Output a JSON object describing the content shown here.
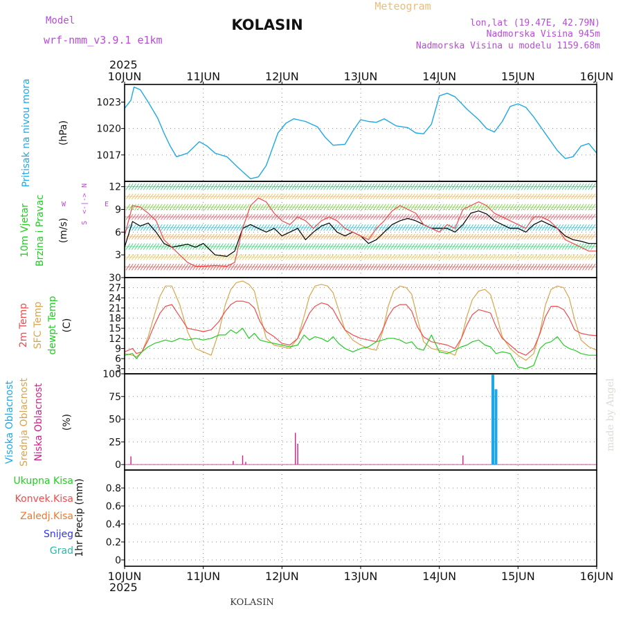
{
  "header": {
    "model_label": "Model",
    "model_name": "wrf-nmm_v3.9.1 e1km",
    "station": "KOLASIN",
    "meteogram_label": "Meteogram",
    "coords": "lon,lat (19.47E, 42.79N)",
    "elevation": "Nadmorska Visina 945m",
    "model_elevation": "Nadmorska Visina u modelu 1159.68m",
    "year_top": "2025",
    "year_bottom": "2025",
    "footer_station": "KOLASIN",
    "watermark": "made by Angel"
  },
  "colors": {
    "pressure": "#1ea7e8",
    "t2m": "#ef4b4b",
    "tsfc": "#d9a54a",
    "dewpt": "#22cc22",
    "cloud_high": "#1ea7e8",
    "cloud_mid": "#d9a54a",
    "cloud_low": "#cc2288",
    "grid": "#999999"
  },
  "chart_data": [
    {
      "type": "line",
      "panel": "pressure",
      "ylabel_left": "Pritisak na nivou mora",
      "ylabel_unit": "(hPa)",
      "x_ticks": [
        "10JUN",
        "11JUN",
        "12JUN",
        "13JUN",
        "14JUN",
        "15JUN",
        "16JUN"
      ],
      "y_ticks": [
        "1017",
        "1020",
        "1023"
      ],
      "ylim": [
        1014,
        1025
      ],
      "series": [
        {
          "color": "#1ea7e8",
          "x": [
            0,
            0.08,
            0.12,
            0.2,
            0.3,
            0.42,
            0.5,
            0.58,
            0.66,
            0.8,
            0.95,
            1.05,
            1.15,
            1.3,
            1.45,
            1.55,
            1.6,
            1.7,
            1.8,
            1.95,
            2.05,
            2.15,
            2.3,
            2.45,
            2.55,
            2.65,
            2.8,
            2.9,
            3.0,
            3.1,
            3.2,
            3.3,
            3.45,
            3.6,
            3.7,
            3.8,
            3.9,
            4.0,
            4.1,
            4.2,
            4.35,
            4.5,
            4.6,
            4.7,
            4.8,
            4.9,
            5.0,
            5.1,
            5.2,
            5.35,
            5.5,
            5.6,
            5.7,
            5.8,
            5.9,
            6.0
          ],
          "values": [
            1022.3,
            1023.2,
            1024.7,
            1024.4,
            1023.0,
            1021.2,
            1019.5,
            1018.0,
            1016.8,
            1017.2,
            1018.5,
            1018.0,
            1017.2,
            1016.8,
            1015.5,
            1014.7,
            1014.3,
            1014.5,
            1015.8,
            1019.5,
            1020.6,
            1021.1,
            1020.8,
            1020.2,
            1019.0,
            1018.1,
            1018.2,
            1019.7,
            1021.0,
            1020.8,
            1020.7,
            1021.1,
            1020.3,
            1020.1,
            1019.5,
            1019.4,
            1020.5,
            1023.7,
            1024.0,
            1023.6,
            1022.2,
            1021.0,
            1020.0,
            1019.6,
            1020.8,
            1022.5,
            1022.8,
            1022.4,
            1021.3,
            1019.4,
            1017.5,
            1016.6,
            1016.8,
            1018.0,
            1018.3,
            1017.2
          ]
        }
      ]
    },
    {
      "type": "line",
      "panel": "wind",
      "ylabel_left_1": "10m Vjetar",
      "ylabel_left_2": "Brzina i Pravac",
      "ylabel_unit": "(m/s)",
      "compass": {
        "n": "N",
        "s": "S",
        "e": "E",
        "w": "W",
        "arrow": "<-|->"
      },
      "y_ticks": [
        "3",
        "6",
        "9",
        "12"
      ],
      "ylim": [
        0,
        12.7
      ],
      "series": [
        {
          "color": "#000000",
          "x": [
            0,
            0.1,
            0.2,
            0.3,
            0.4,
            0.5,
            0.6,
            0.7,
            0.8,
            0.9,
            1.0,
            1.15,
            1.3,
            1.4,
            1.5,
            1.6,
            1.7,
            1.8,
            1.9,
            2.0,
            2.1,
            2.2,
            2.3,
            2.4,
            2.5,
            2.6,
            2.7,
            2.8,
            2.9,
            3.0,
            3.1,
            3.2,
            3.3,
            3.4,
            3.5,
            3.6,
            3.7,
            3.8,
            3.9,
            4.0,
            4.1,
            4.2,
            4.3,
            4.4,
            4.5,
            4.6,
            4.7,
            4.8,
            4.9,
            5.0,
            5.1,
            5.2,
            5.3,
            5.4,
            5.5,
            5.6,
            5.7,
            5.8,
            5.9,
            6.0
          ],
          "values": [
            4.0,
            7.4,
            6.8,
            7.2,
            6.0,
            4.5,
            4.0,
            4.2,
            4.4,
            4.0,
            4.5,
            3.0,
            2.8,
            3.5,
            6.5,
            7.0,
            6.5,
            6.0,
            6.5,
            5.5,
            6.0,
            6.5,
            5.0,
            6.0,
            6.8,
            7.2,
            6.0,
            5.5,
            6.0,
            5.5,
            4.5,
            5.0,
            6.0,
            7.0,
            7.5,
            7.8,
            7.5,
            7.0,
            6.5,
            6.5,
            6.5,
            6.0,
            7.0,
            8.5,
            8.8,
            8.4,
            7.5,
            7.0,
            6.5,
            6.5,
            6.0,
            7.0,
            7.5,
            7.0,
            6.5,
            5.5,
            5.0,
            4.8,
            4.5,
            4.5
          ]
        },
        {
          "color": "#ef4b4b",
          "x": [
            0,
            0.1,
            0.2,
            0.3,
            0.4,
            0.5,
            0.6,
            0.7,
            0.8,
            0.9,
            1.0,
            1.15,
            1.3,
            1.4,
            1.5,
            1.6,
            1.7,
            1.8,
            1.9,
            2.0,
            2.1,
            2.2,
            2.3,
            2.4,
            2.5,
            2.6,
            2.7,
            2.8,
            2.9,
            3.0,
            3.1,
            3.2,
            3.3,
            3.4,
            3.5,
            3.6,
            3.7,
            3.8,
            3.9,
            4.0,
            4.1,
            4.2,
            4.3,
            4.4,
            4.5,
            4.6,
            4.7,
            4.8,
            4.9,
            5.0,
            5.1,
            5.2,
            5.3,
            5.4,
            5.5,
            5.6,
            5.7,
            5.8,
            5.9,
            6.0
          ],
          "values": [
            5.5,
            9.5,
            9.3,
            8.5,
            7.5,
            5.0,
            4.0,
            3.0,
            2.0,
            1.5,
            1.5,
            1.6,
            1.5,
            2.0,
            6.5,
            9.5,
            10.5,
            10.0,
            8.5,
            7.5,
            7.0,
            8.0,
            7.5,
            6.5,
            7.5,
            8.0,
            7.5,
            6.5,
            6.0,
            5.5,
            5.0,
            6.5,
            7.5,
            8.8,
            9.5,
            9.0,
            8.5,
            7.0,
            6.5,
            6.0,
            7.0,
            6.5,
            9.0,
            9.5,
            10.0,
            9.5,
            8.5,
            8.0,
            7.5,
            7.0,
            6.5,
            8.0,
            8.0,
            7.5,
            6.5,
            5.0,
            4.5,
            4.0,
            3.5,
            3.5
          ]
        }
      ]
    },
    {
      "type": "line",
      "panel": "temperature",
      "ylabel_left_1": "2m Temp",
      "ylabel_left_2": "SFC Temp",
      "ylabel_left_3": "dewpt Temp",
      "ylabel_unit": "(C)",
      "y_ticks": [
        "3",
        "6",
        "9",
        "12",
        "15",
        "18",
        "21",
        "24",
        "27",
        "30"
      ],
      "ylim": [
        1.5,
        30
      ],
      "series": [
        {
          "name": "2m Temp",
          "color": "#ef4b4b",
          "x": [
            0,
            0.1,
            0.15,
            0.22,
            0.3,
            0.38,
            0.45,
            0.52,
            0.6,
            0.7,
            0.8,
            0.9,
            1.0,
            1.1,
            1.2,
            1.28,
            1.35,
            1.42,
            1.5,
            1.58,
            1.65,
            1.72,
            1.8,
            1.9,
            2.0,
            2.1,
            2.2,
            2.28,
            2.35,
            2.42,
            2.5,
            2.58,
            2.65,
            2.72,
            2.8,
            2.9,
            3.0,
            3.1,
            3.2,
            3.28,
            3.35,
            3.42,
            3.5,
            3.58,
            3.65,
            3.72,
            3.8,
            3.9,
            4.0,
            4.1,
            4.2,
            4.28,
            4.35,
            4.42,
            4.5,
            4.58,
            4.65,
            4.72,
            4.8,
            4.9,
            5.0,
            5.1,
            5.2,
            5.28,
            5.35,
            5.42,
            5.5,
            5.58,
            5.65,
            5.72,
            5.8,
            5.9,
            6.0
          ],
          "values": [
            8.0,
            9.0,
            7.5,
            8.0,
            11.5,
            16.0,
            19.5,
            21.5,
            22.0,
            18.5,
            15.0,
            14.5,
            14.0,
            14.5,
            17.0,
            20.0,
            22.0,
            23.0,
            23.0,
            22.5,
            21.0,
            17.0,
            14.0,
            12.5,
            10.5,
            10.0,
            12.0,
            16.0,
            19.5,
            21.5,
            22.5,
            22.0,
            20.5,
            17.5,
            14.5,
            13.0,
            12.0,
            11.5,
            11.0,
            14.5,
            18.5,
            21.0,
            22.0,
            22.0,
            20.0,
            15.5,
            12.5,
            11.0,
            10.5,
            10.0,
            9.0,
            12.0,
            16.0,
            19.0,
            20.5,
            20.0,
            19.5,
            15.5,
            12.0,
            10.0,
            8.0,
            7.0,
            9.0,
            13.5,
            18.5,
            21.5,
            21.5,
            20.5,
            18.0,
            14.5,
            13.5,
            13.0,
            12.8
          ]
        },
        {
          "name": "SFC Temp",
          "color": "#d9a54a",
          "x": [
            0,
            0.1,
            0.15,
            0.22,
            0.3,
            0.38,
            0.45,
            0.52,
            0.6,
            0.7,
            0.8,
            0.9,
            1.0,
            1.1,
            1.2,
            1.28,
            1.35,
            1.42,
            1.5,
            1.58,
            1.65,
            1.72,
            1.8,
            1.9,
            2.0,
            2.1,
            2.2,
            2.28,
            2.35,
            2.42,
            2.5,
            2.58,
            2.65,
            2.72,
            2.8,
            2.9,
            3.0,
            3.1,
            3.2,
            3.28,
            3.35,
            3.42,
            3.5,
            3.58,
            3.65,
            3.72,
            3.8,
            3.9,
            4.0,
            4.1,
            4.2,
            4.28,
            4.35,
            4.42,
            4.5,
            4.58,
            4.65,
            4.72,
            4.8,
            4.9,
            5.0,
            5.1,
            5.2,
            5.28,
            5.35,
            5.42,
            5.5,
            5.58,
            5.65,
            5.72,
            5.8,
            5.9,
            6.0
          ],
          "values": [
            7.5,
            7.0,
            6.5,
            8.0,
            12.5,
            19.0,
            24.5,
            27.5,
            27.5,
            22.0,
            14.0,
            9.0,
            8.0,
            7.0,
            14.0,
            22.0,
            26.5,
            28.5,
            29.0,
            28.0,
            26.0,
            19.0,
            12.0,
            10.0,
            9.5,
            9.0,
            12.0,
            18.5,
            24.5,
            27.5,
            28.0,
            27.5,
            25.5,
            20.5,
            14.5,
            11.5,
            10.0,
            9.0,
            8.5,
            14.0,
            21.5,
            26.0,
            27.5,
            27.0,
            25.0,
            18.0,
            11.0,
            9.0,
            8.5,
            8.0,
            7.0,
            12.0,
            18.5,
            23.5,
            26.0,
            26.5,
            25.0,
            19.5,
            12.5,
            9.0,
            7.0,
            5.5,
            7.5,
            14.0,
            22.0,
            26.5,
            27.5,
            27.0,
            24.0,
            17.5,
            11.5,
            9.5,
            8.5
          ]
        },
        {
          "name": "dewpt Temp",
          "color": "#22cc22",
          "x": [
            0,
            0.1,
            0.15,
            0.22,
            0.3,
            0.38,
            0.45,
            0.52,
            0.6,
            0.7,
            0.8,
            0.9,
            1.0,
            1.1,
            1.2,
            1.28,
            1.35,
            1.42,
            1.5,
            1.58,
            1.65,
            1.72,
            1.8,
            1.9,
            2.0,
            2.1,
            2.2,
            2.28,
            2.35,
            2.42,
            2.5,
            2.58,
            2.65,
            2.72,
            2.8,
            2.9,
            3.0,
            3.1,
            3.2,
            3.28,
            3.35,
            3.42,
            3.5,
            3.58,
            3.65,
            3.72,
            3.8,
            3.9,
            4.0,
            4.1,
            4.2,
            4.28,
            4.35,
            4.42,
            4.5,
            4.58,
            4.65,
            4.72,
            4.8,
            4.9,
            5.0,
            5.1,
            5.2,
            5.28,
            5.35,
            5.42,
            5.5,
            5.58,
            5.65,
            5.72,
            5.8,
            5.9,
            6.0
          ],
          "values": [
            7.0,
            7.5,
            6.0,
            8.0,
            9.5,
            10.5,
            11.0,
            11.5,
            11.0,
            12.0,
            11.5,
            12.0,
            11.5,
            12.0,
            13.0,
            13.0,
            14.5,
            13.5,
            15.0,
            12.0,
            13.5,
            11.5,
            11.0,
            10.5,
            10.0,
            9.5,
            10.0,
            13.0,
            11.5,
            12.5,
            12.0,
            11.0,
            12.5,
            10.5,
            9.0,
            8.0,
            9.0,
            9.5,
            11.0,
            11.5,
            12.0,
            12.0,
            11.5,
            10.5,
            11.0,
            9.0,
            8.5,
            13.0,
            8.0,
            7.5,
            8.5,
            9.5,
            10.0,
            11.0,
            11.5,
            10.0,
            9.5,
            7.5,
            8.0,
            7.5,
            3.5,
            3.0,
            4.0,
            9.0,
            10.5,
            11.0,
            12.5,
            10.0,
            9.0,
            8.5,
            7.5,
            7.0,
            7.0
          ]
        }
      ]
    },
    {
      "type": "bar",
      "panel": "clouds",
      "ylabel_left_1": "Visoka Oblacnost",
      "ylabel_left_2": "Srednja Oblacnost",
      "ylabel_left_3": "Niska Oblacnost",
      "ylabel_unit": "(%)",
      "y_ticks": [
        "0",
        "25",
        "50",
        "75",
        "100"
      ],
      "ylim": [
        -6,
        100
      ],
      "series": [
        {
          "name": "Visoka Oblacnost",
          "color": "#1ea7e8",
          "x": [
            4.68,
            4.72
          ],
          "values": [
            99,
            83
          ]
        },
        {
          "name": "Srednja Oblacnost",
          "color": "#d9a54a",
          "x": [],
          "values": []
        },
        {
          "name": "Niska Oblacnost",
          "color": "#cc2288",
          "x": [
            0.08,
            1.38,
            1.5,
            1.54,
            2.17,
            2.2,
            4.3
          ],
          "values": [
            9,
            4,
            10,
            3,
            35,
            23,
            10
          ]
        }
      ]
    },
    {
      "type": "bar",
      "panel": "precip",
      "ylabel_left": "1hr Precip (mm)",
      "legend": [
        "Ukupna Kisa",
        "Konvek.Kisa",
        "Zaledj.Kisa",
        "Snijeg",
        "Grad"
      ],
      "legend_colors": [
        "#22cc22",
        "#ef4b4b",
        "#f07828",
        "#3333ee",
        "#22bbaa"
      ],
      "y_ticks": [
        "0",
        "0.2",
        "0.4",
        "0.6",
        "0.8"
      ],
      "ylim": [
        -0.07,
        1.0
      ],
      "x_ticks": [
        "10JUN",
        "11JUN",
        "12JUN",
        "13JUN",
        "14JUN",
        "15JUN",
        "16JUN"
      ],
      "series": []
    }
  ]
}
